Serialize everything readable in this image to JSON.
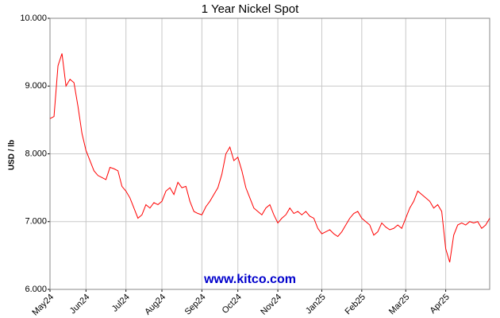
{
  "chart_data": {
    "type": "line",
    "title": "1 Year Nickel Spot",
    "y_label": "USD / lb",
    "watermark": "www.kitco.com",
    "categories": [
      "May24",
      null,
      null,
      null,
      null,
      null,
      null,
      null,
      null,
      "Jun24",
      null,
      null,
      null,
      null,
      null,
      null,
      null,
      null,
      null,
      "Jul24",
      null,
      null,
      null,
      null,
      null,
      null,
      null,
      null,
      "Aug24",
      null,
      null,
      null,
      null,
      null,
      null,
      null,
      null,
      null,
      "Sep24",
      null,
      null,
      null,
      null,
      null,
      null,
      null,
      null,
      "Oct24",
      null,
      null,
      null,
      null,
      null,
      null,
      null,
      null,
      null,
      "Nov24",
      null,
      null,
      null,
      null,
      null,
      null,
      null,
      null,
      null,
      null,
      "Jan25",
      null,
      null,
      null,
      null,
      null,
      null,
      null,
      null,
      null,
      "Feb25",
      null,
      null,
      null,
      null,
      null,
      null,
      null,
      null,
      null,
      null,
      "Mar25",
      null,
      null,
      null,
      null,
      null,
      null,
      null,
      null,
      null,
      "Apr25",
      null,
      null,
      null,
      null,
      null,
      null,
      null,
      null,
      null,
      null,
      null
    ],
    "values": [
      8.52,
      8.55,
      9.3,
      9.48,
      9.0,
      9.1,
      9.05,
      8.7,
      8.3,
      8.05,
      7.9,
      7.75,
      7.68,
      7.65,
      7.62,
      7.8,
      7.78,
      7.75,
      7.52,
      7.45,
      7.35,
      7.2,
      7.05,
      7.1,
      7.25,
      7.2,
      7.28,
      7.25,
      7.3,
      7.45,
      7.5,
      7.4,
      7.58,
      7.5,
      7.52,
      7.3,
      7.15,
      7.12,
      7.1,
      7.22,
      7.3,
      7.4,
      7.5,
      7.7,
      8.0,
      8.1,
      7.9,
      7.95,
      7.75,
      7.5,
      7.35,
      7.2,
      7.15,
      7.1,
      7.2,
      7.25,
      7.1,
      6.98,
      7.05,
      7.1,
      7.2,
      7.12,
      7.15,
      7.1,
      7.15,
      7.08,
      7.05,
      6.9,
      6.82,
      6.85,
      6.88,
      6.82,
      6.78,
      6.85,
      6.95,
      7.05,
      7.12,
      7.15,
      7.05,
      7.0,
      6.95,
      6.8,
      6.85,
      6.98,
      6.92,
      6.88,
      6.9,
      6.95,
      6.9,
      7.05,
      7.2,
      7.3,
      7.45,
      7.4,
      7.35,
      7.3,
      7.2,
      7.25,
      7.15,
      6.6,
      6.4,
      6.8,
      6.95,
      6.98,
      6.95,
      7.0,
      6.98,
      7.0,
      6.9,
      6.95,
      7.05
    ],
    "color": "#ff0000",
    "ylim": [
      6,
      10
    ],
    "yticks": [
      {
        "value": 6,
        "label": "6.000"
      },
      {
        "value": 7,
        "label": "7.000"
      },
      {
        "value": 8,
        "label": "8.000"
      },
      {
        "value": 9,
        "label": "9.000"
      },
      {
        "value": 10,
        "label": "10.000"
      }
    ],
    "grid": true
  }
}
